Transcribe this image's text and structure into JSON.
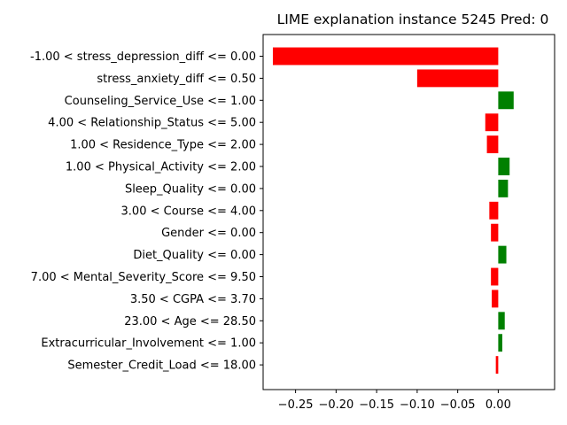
{
  "chart_data": {
    "type": "bar",
    "orientation": "horizontal",
    "title": "LIME explanation instance 5245 Pred: 0",
    "xlabel": "",
    "ylabel": "",
    "xlim": [
      -0.29,
      0.0695
    ],
    "xticks": [
      -0.25,
      -0.2,
      -0.15,
      -0.1,
      -0.05,
      0.0
    ],
    "xtick_labels": [
      "−0.25",
      "−0.20",
      "−0.15",
      "−0.10",
      "−0.05",
      "0.00"
    ],
    "grid": false,
    "legend": "none",
    "colors": {
      "positive": "#008000",
      "negative": "#ff0000"
    },
    "bars": [
      {
        "label": "-1.00 < stress_depression_diff <= 0.00",
        "value": -0.278
      },
      {
        "label": "stress_anxiety_diff <= 0.50",
        "value": -0.1
      },
      {
        "label": "Counseling_Service_Use <= 1.00",
        "value": 0.019
      },
      {
        "label": "4.00 < Relationship_Status <= 5.00",
        "value": -0.016
      },
      {
        "label": "1.00 < Residence_Type <= 2.00",
        "value": -0.014
      },
      {
        "label": "1.00 < Physical_Activity <= 2.00",
        "value": 0.014
      },
      {
        "label": "Sleep_Quality <= 0.00",
        "value": 0.012
      },
      {
        "label": "3.00 < Course <= 4.00",
        "value": -0.011
      },
      {
        "label": "Gender <= 0.00",
        "value": -0.009
      },
      {
        "label": "Diet_Quality <= 0.00",
        "value": 0.01
      },
      {
        "label": "7.00 < Mental_Severity_Score <= 9.50",
        "value": -0.009
      },
      {
        "label": "3.50 < CGPA <= 3.70",
        "value": -0.008
      },
      {
        "label": "23.00 < Age <= 28.50",
        "value": 0.008
      },
      {
        "label": "Extracurricular_Involvement <= 1.00",
        "value": 0.005
      },
      {
        "label": "Semester_Credit_Load <= 18.00",
        "value": -0.003
      }
    ]
  }
}
